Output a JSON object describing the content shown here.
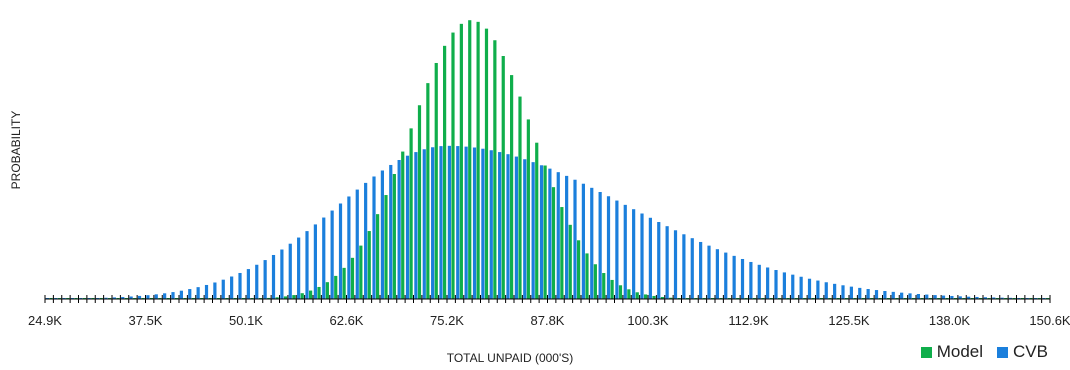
{
  "chart_data": {
    "type": "bar",
    "xlabel": "TOTAL UNPAID (000'S)",
    "ylabel": "PROBABILITY",
    "tick_labels": [
      "24.9K",
      "37.5K",
      "50.1K",
      "62.6K",
      "75.2K",
      "87.8K",
      "100.3K",
      "112.9K",
      "125.5K",
      "138.0K",
      "150.6K"
    ],
    "xlim": [
      24.9,
      150.6
    ],
    "ylim": [
      0,
      0.1
    ],
    "grid": false,
    "legend_position": "bottom-right",
    "series": [
      {
        "name": "Model",
        "color": "#0fae4b",
        "mean": 78.0,
        "sd": 7.6,
        "peak": 0.0965
      },
      {
        "name": "CVB",
        "color": "#1b7fdc",
        "mode": 75.5,
        "sd_left": 13.8,
        "sd_right": 22.5,
        "peak": 0.053
      }
    ]
  },
  "legend": {
    "model_label": "Model",
    "cvb_label": "CVB"
  }
}
